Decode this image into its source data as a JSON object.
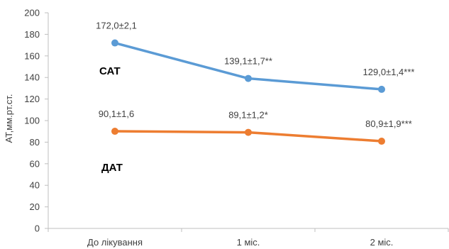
{
  "chart_data": {
    "type": "line",
    "ylabel": "АТ,мм.рт.ст.",
    "xlabel": "",
    "ylim": [
      0,
      200
    ],
    "yticks": [
      "0",
      "20",
      "40",
      "60",
      "80",
      "100",
      "120",
      "140",
      "160",
      "180",
      "200"
    ],
    "categories": [
      "До лікування",
      "1 міс.",
      "2 міс."
    ],
    "grid": false,
    "series": [
      {
        "name": "САТ",
        "color": "#5b9bd5",
        "values": [
          172.0,
          139.1,
          129.0
        ],
        "labels": [
          "172,0±2,1",
          "139,1±1,7**",
          "129,0±1,4***"
        ]
      },
      {
        "name": "ДАТ",
        "color": "#ed7d31",
        "values": [
          90.1,
          89.1,
          80.9
        ],
        "labels": [
          "90,1±1,6",
          "89,1±1,2*",
          "80,9±1,9***"
        ]
      }
    ]
  }
}
